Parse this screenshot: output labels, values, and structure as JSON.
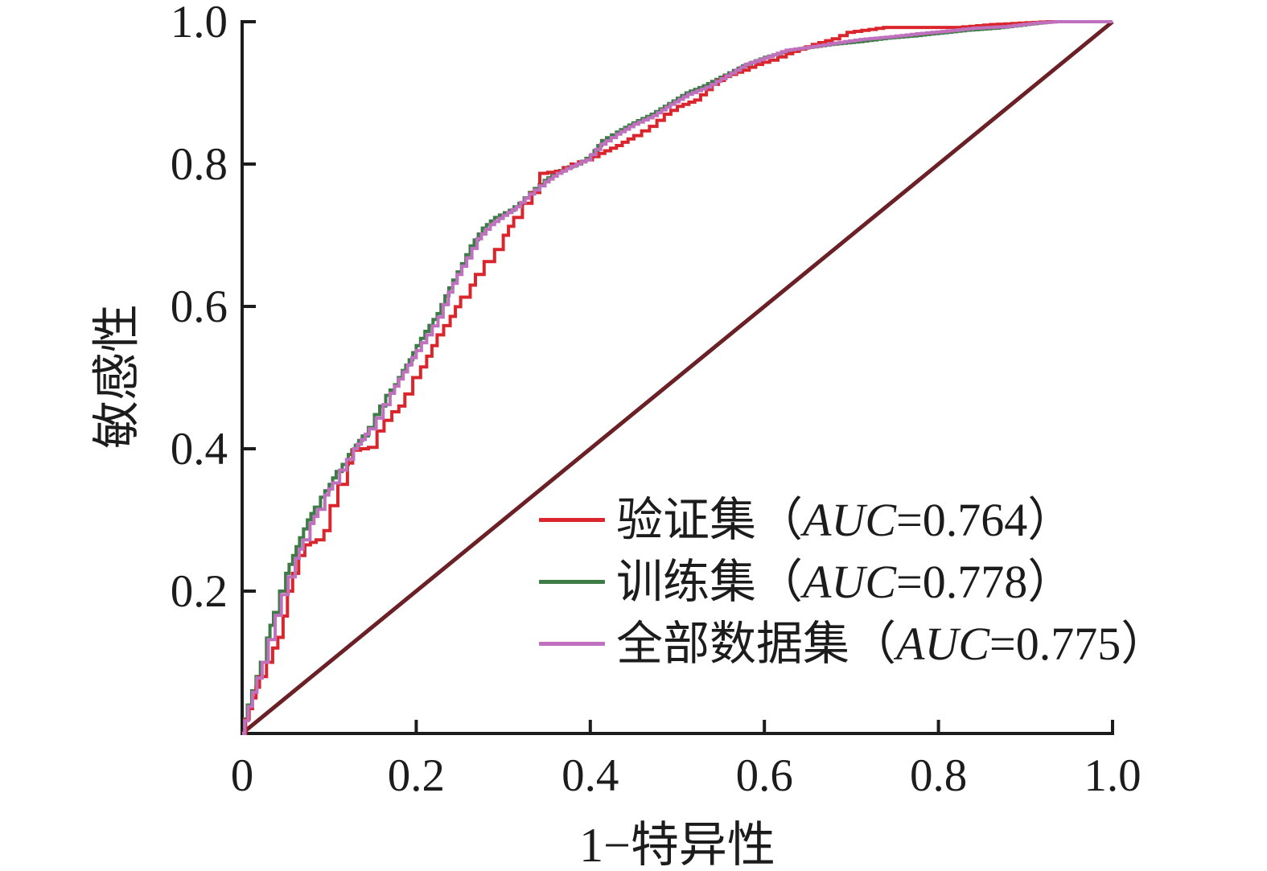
{
  "figure": {
    "background": "#ffffff",
    "axis_color": "#1c1c1c",
    "text_color": "#1c1c1c"
  },
  "axes": {
    "x": {
      "title": "1−特异性",
      "tick_labels": [
        "0",
        "0.2",
        "0.4",
        "0.6",
        "0.8",
        "1.0"
      ],
      "tick_values": [
        0,
        0.2,
        0.4,
        0.6,
        0.8,
        1.0
      ],
      "range": [
        0,
        1
      ]
    },
    "y": {
      "title": "敏感性",
      "tick_labels": [
        "0.2",
        "0.4",
        "0.6",
        "0.8",
        "1.0"
      ],
      "tick_values": [
        0.2,
        0.4,
        0.6,
        0.8,
        1.0
      ],
      "range": [
        0,
        1
      ]
    }
  },
  "legend": {
    "items": [
      {
        "label": "验证集",
        "open_paren": "（",
        "auc_label": "AUC",
        "auc_value": "=0.764",
        "close_paren": "）",
        "color": "#d9252b"
      },
      {
        "label": "训练集",
        "open_paren": "（",
        "auc_label": "AUC",
        "auc_value": "=0.778",
        "close_paren": "）",
        "color": "#3d7c47"
      },
      {
        "label": "全部数据集",
        "open_paren": "（",
        "auc_label": "AUC",
        "auc_value": "=0.775",
        "close_paren": "）",
        "color": "#bf71bd"
      }
    ]
  },
  "chart_data": {
    "type": "line",
    "subtype": "roc-step-curves",
    "title": "",
    "xlabel": "1−特异性",
    "ylabel": "敏感性",
    "xlim": [
      0,
      1
    ],
    "ylim": [
      0,
      1
    ],
    "grid": false,
    "legend_position": "inside-lower-right",
    "xticks": [
      0,
      0.2,
      0.4,
      0.6,
      0.8,
      1.0
    ],
    "yticks": [
      0.2,
      0.4,
      0.6,
      0.8,
      1.0
    ],
    "reference_line": {
      "from": [
        0,
        0
      ],
      "to": [
        1,
        1
      ],
      "color": "#6b2026",
      "width": 5
    },
    "series": [
      {
        "name": "验证集（AUC=0.764）",
        "auc": 0.764,
        "color": "#d9252b",
        "points": [
          [
            0,
            0
          ],
          [
            0.004,
            0.02
          ],
          [
            0.008,
            0.035
          ],
          [
            0.012,
            0.05
          ],
          [
            0.016,
            0.065
          ],
          [
            0.02,
            0.08
          ],
          [
            0.028,
            0.1
          ],
          [
            0.035,
            0.12
          ],
          [
            0.041,
            0.135
          ],
          [
            0.047,
            0.165
          ],
          [
            0.052,
            0.2
          ],
          [
            0.058,
            0.225
          ],
          [
            0.065,
            0.25
          ],
          [
            0.072,
            0.265
          ],
          [
            0.085,
            0.272
          ],
          [
            0.094,
            0.285
          ],
          [
            0.101,
            0.32
          ],
          [
            0.11,
            0.35
          ],
          [
            0.121,
            0.38
          ],
          [
            0.127,
            0.398
          ],
          [
            0.145,
            0.402
          ],
          [
            0.155,
            0.425
          ],
          [
            0.163,
            0.44
          ],
          [
            0.172,
            0.452
          ],
          [
            0.18,
            0.46
          ],
          [
            0.187,
            0.477
          ],
          [
            0.196,
            0.5
          ],
          [
            0.205,
            0.515
          ],
          [
            0.212,
            0.53
          ],
          [
            0.224,
            0.56
          ],
          [
            0.239,
            0.586
          ],
          [
            0.251,
            0.613
          ],
          [
            0.262,
            0.63
          ],
          [
            0.268,
            0.645
          ],
          [
            0.278,
            0.663
          ],
          [
            0.29,
            0.68
          ],
          [
            0.3,
            0.7
          ],
          [
            0.312,
            0.725
          ],
          [
            0.322,
            0.745
          ],
          [
            0.333,
            0.76
          ],
          [
            0.342,
            0.787
          ],
          [
            0.36,
            0.79
          ],
          [
            0.378,
            0.8
          ],
          [
            0.395,
            0.806
          ],
          [
            0.41,
            0.815
          ],
          [
            0.43,
            0.826
          ],
          [
            0.45,
            0.84
          ],
          [
            0.468,
            0.853
          ],
          [
            0.485,
            0.87
          ],
          [
            0.5,
            0.881
          ],
          [
            0.52,
            0.89
          ],
          [
            0.54,
            0.912
          ],
          [
            0.554,
            0.923
          ],
          [
            0.575,
            0.932
          ],
          [
            0.59,
            0.94
          ],
          [
            0.606,
            0.946
          ],
          [
            0.625,
            0.955
          ],
          [
            0.655,
            0.968
          ],
          [
            0.678,
            0.976
          ],
          [
            0.695,
            0.985
          ],
          [
            0.737,
            0.992
          ],
          [
            0.82,
            0.992
          ],
          [
            0.86,
            0.996
          ],
          [
            0.925,
            1
          ],
          [
            1,
            1
          ]
        ]
      },
      {
        "name": "训练集（AUC=0.778）",
        "auc": 0.778,
        "color": "#3d7c47",
        "points": [
          [
            0,
            0
          ],
          [
            0.003,
            0.02
          ],
          [
            0.006,
            0.04
          ],
          [
            0.011,
            0.06
          ],
          [
            0.016,
            0.08
          ],
          [
            0.021,
            0.1
          ],
          [
            0.028,
            0.134
          ],
          [
            0.036,
            0.17
          ],
          [
            0.043,
            0.2
          ],
          [
            0.05,
            0.225
          ],
          [
            0.058,
            0.25
          ],
          [
            0.066,
            0.275
          ],
          [
            0.075,
            0.3
          ],
          [
            0.083,
            0.318
          ],
          [
            0.09,
            0.332
          ],
          [
            0.1,
            0.35
          ],
          [
            0.108,
            0.368
          ],
          [
            0.115,
            0.378
          ],
          [
            0.122,
            0.392
          ],
          [
            0.13,
            0.405
          ],
          [
            0.138,
            0.418
          ],
          [
            0.145,
            0.43
          ],
          [
            0.152,
            0.448
          ],
          [
            0.158,
            0.46
          ],
          [
            0.165,
            0.475
          ],
          [
            0.175,
            0.49
          ],
          [
            0.184,
            0.51
          ],
          [
            0.192,
            0.525
          ],
          [
            0.2,
            0.545
          ],
          [
            0.21,
            0.565
          ],
          [
            0.224,
            0.59
          ],
          [
            0.233,
            0.615
          ],
          [
            0.242,
            0.637
          ],
          [
            0.252,
            0.66
          ],
          [
            0.262,
            0.685
          ],
          [
            0.276,
            0.71
          ],
          [
            0.29,
            0.725
          ],
          [
            0.307,
            0.735
          ],
          [
            0.318,
            0.745
          ],
          [
            0.33,
            0.76
          ],
          [
            0.347,
            0.777
          ],
          [
            0.36,
            0.788
          ],
          [
            0.37,
            0.794
          ],
          [
            0.385,
            0.8
          ],
          [
            0.4,
            0.812
          ],
          [
            0.413,
            0.833
          ],
          [
            0.43,
            0.845
          ],
          [
            0.449,
            0.858
          ],
          [
            0.47,
            0.87
          ],
          [
            0.49,
            0.885
          ],
          [
            0.51,
            0.9
          ],
          [
            0.53,
            0.91
          ],
          [
            0.554,
            0.925
          ],
          [
            0.575,
            0.938
          ],
          [
            0.6,
            0.95
          ],
          [
            0.62,
            0.957
          ],
          [
            0.646,
            0.963
          ],
          [
            0.675,
            0.968
          ],
          [
            0.708,
            0.972
          ],
          [
            0.74,
            0.977
          ],
          [
            0.77,
            0.98
          ],
          [
            0.8,
            0.984
          ],
          [
            0.831,
            0.988
          ],
          [
            0.865,
            0.991
          ],
          [
            0.9,
            0.996
          ],
          [
            0.928,
            1
          ],
          [
            1,
            1
          ]
        ]
      },
      {
        "name": "全部数据集（AUC=0.775）",
        "auc": 0.775,
        "color": "#bf71bd",
        "points": [
          [
            0,
            0
          ],
          [
            0.003,
            0.018
          ],
          [
            0.007,
            0.038
          ],
          [
            0.012,
            0.058
          ],
          [
            0.017,
            0.078
          ],
          [
            0.023,
            0.1
          ],
          [
            0.03,
            0.132
          ],
          [
            0.038,
            0.166
          ],
          [
            0.045,
            0.195
          ],
          [
            0.053,
            0.22
          ],
          [
            0.061,
            0.246
          ],
          [
            0.07,
            0.272
          ],
          [
            0.078,
            0.295
          ],
          [
            0.087,
            0.315
          ],
          [
            0.095,
            0.335
          ],
          [
            0.104,
            0.352
          ],
          [
            0.112,
            0.37
          ],
          [
            0.12,
            0.385
          ],
          [
            0.128,
            0.4
          ],
          [
            0.137,
            0.413
          ],
          [
            0.146,
            0.428
          ],
          [
            0.154,
            0.443
          ],
          [
            0.162,
            0.462
          ],
          [
            0.17,
            0.478
          ],
          [
            0.18,
            0.498
          ],
          [
            0.19,
            0.518
          ],
          [
            0.2,
            0.538
          ],
          [
            0.212,
            0.56
          ],
          [
            0.225,
            0.585
          ],
          [
            0.237,
            0.62
          ],
          [
            0.247,
            0.645
          ],
          [
            0.258,
            0.668
          ],
          [
            0.27,
            0.695
          ],
          [
            0.285,
            0.715
          ],
          [
            0.3,
            0.728
          ],
          [
            0.315,
            0.74
          ],
          [
            0.33,
            0.758
          ],
          [
            0.348,
            0.775
          ],
          [
            0.362,
            0.787
          ],
          [
            0.378,
            0.797
          ],
          [
            0.395,
            0.806
          ],
          [
            0.412,
            0.828
          ],
          [
            0.43,
            0.842
          ],
          [
            0.45,
            0.856
          ],
          [
            0.472,
            0.868
          ],
          [
            0.492,
            0.884
          ],
          [
            0.512,
            0.898
          ],
          [
            0.533,
            0.908
          ],
          [
            0.556,
            0.924
          ],
          [
            0.578,
            0.94
          ],
          [
            0.6,
            0.949
          ],
          [
            0.625,
            0.96
          ],
          [
            0.65,
            0.964
          ],
          [
            0.68,
            0.97
          ],
          [
            0.71,
            0.975
          ],
          [
            0.745,
            0.979
          ],
          [
            0.775,
            0.983
          ],
          [
            0.81,
            0.987
          ],
          [
            0.84,
            0.991
          ],
          [
            0.875,
            0.993
          ],
          [
            0.91,
            0.998
          ],
          [
            0.935,
            1
          ],
          [
            1,
            1
          ]
        ]
      }
    ]
  }
}
